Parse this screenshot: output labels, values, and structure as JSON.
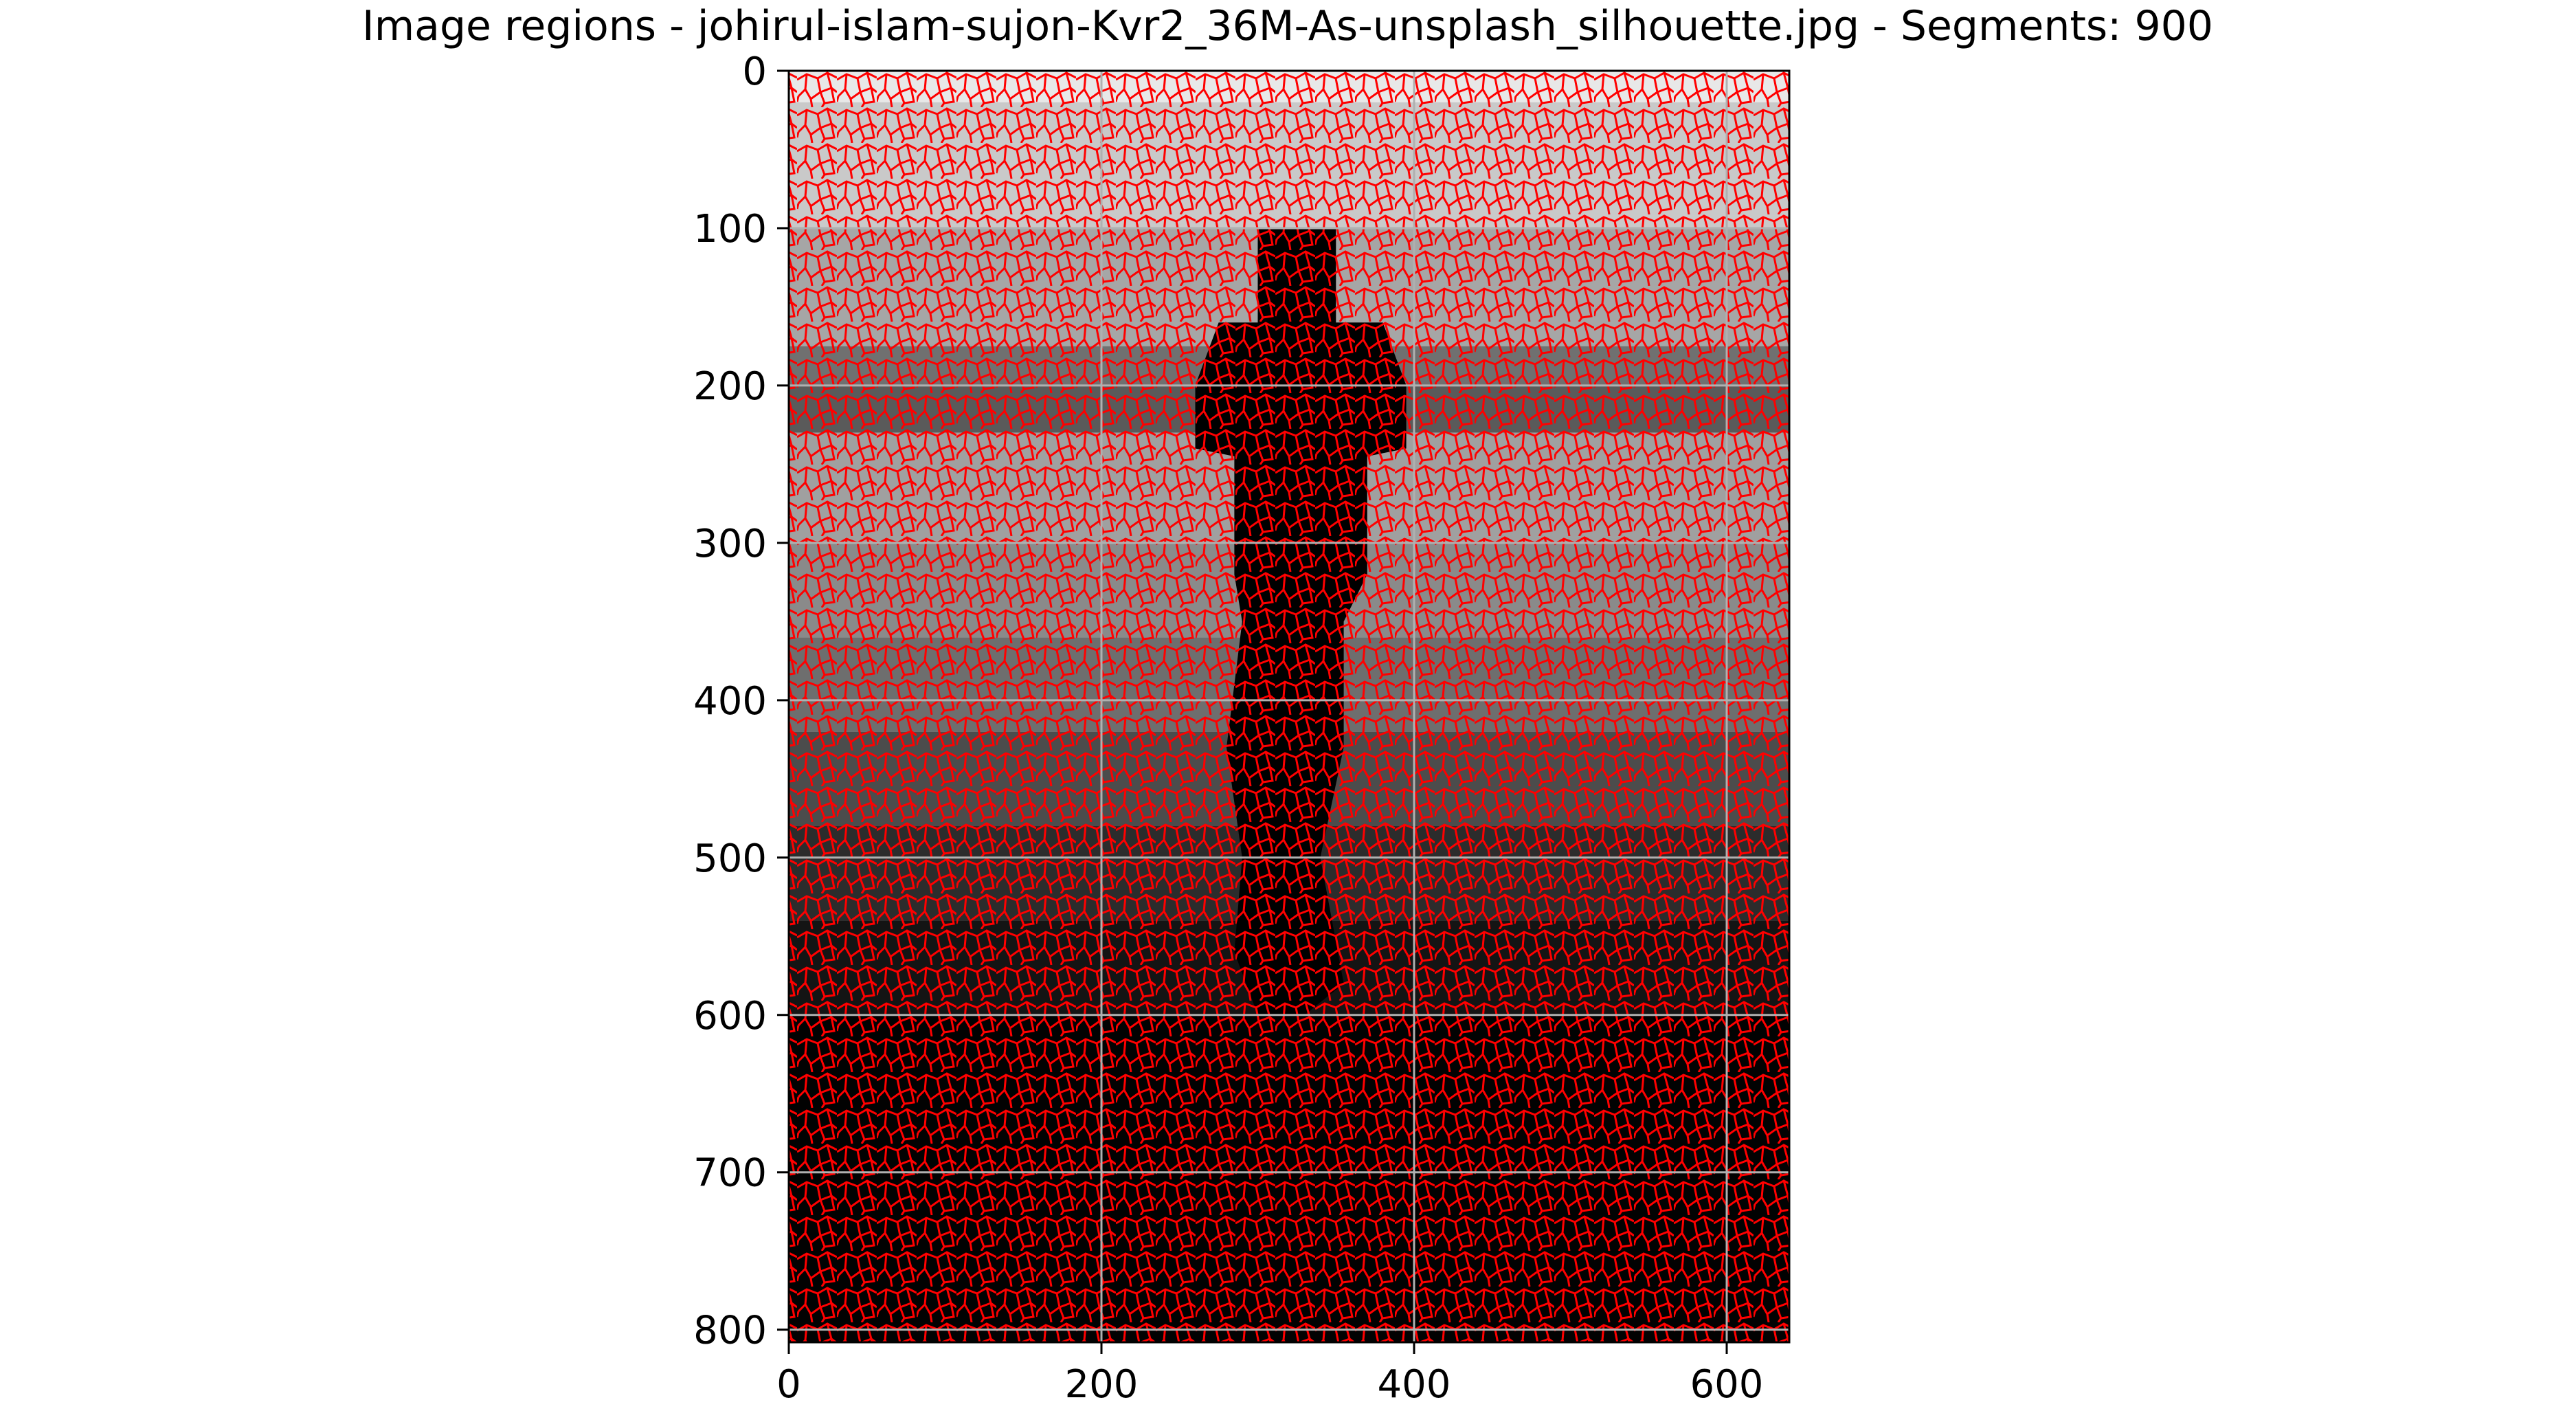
{
  "chart_data": {
    "type": "image",
    "title": "Image regions - johirul-islam-sujon-Kvr2_36M-As-unsplash_silhouette.jpg - Segments: 900",
    "xlabel": "",
    "ylabel": "",
    "xlim": [
      0,
      640
    ],
    "ylim": [
      808,
      0
    ],
    "x_ticks": [
      0,
      200,
      400,
      600
    ],
    "y_ticks": [
      0,
      100,
      200,
      300,
      400,
      500,
      600,
      700,
      800
    ],
    "x_tick_labels": [
      "0",
      "200",
      "400",
      "600"
    ],
    "y_tick_labels": [
      "0",
      "100",
      "200",
      "300",
      "400",
      "500",
      "600",
      "700",
      "800"
    ],
    "grid": true,
    "image": {
      "filename": "johirul-islam-sujon-Kvr2_36M-As-unsplash_silhouette.jpg",
      "segments": 900,
      "boundary_color": "#ff0000",
      "tone_bands": [
        {
          "y_start": 0,
          "y_end": 20,
          "gray": "#e8e8e8"
        },
        {
          "y_start": 20,
          "y_end": 100,
          "gray": "#c9c9c9"
        },
        {
          "y_start": 100,
          "y_end": 175,
          "gray": "#a6a6a6"
        },
        {
          "y_start": 175,
          "y_end": 200,
          "gray": "#707070"
        },
        {
          "y_start": 200,
          "y_end": 230,
          "gray": "#5a5a5a"
        },
        {
          "y_start": 230,
          "y_end": 300,
          "gray": "#a0a0a0"
        },
        {
          "y_start": 300,
          "y_end": 360,
          "gray": "#8a8a8a"
        },
        {
          "y_start": 360,
          "y_end": 420,
          "gray": "#6e6e6e"
        },
        {
          "y_start": 420,
          "y_end": 480,
          "gray": "#4c4c4c"
        },
        {
          "y_start": 480,
          "y_end": 540,
          "gray": "#2c2c2c"
        },
        {
          "y_start": 540,
          "y_end": 600,
          "gray": "#141414"
        },
        {
          "y_start": 600,
          "y_end": 808,
          "gray": "#020202"
        }
      ],
      "silhouette": {
        "shape": "standing-person",
        "color": "#000000",
        "head": [
          [
            300,
            100
          ],
          [
            350,
            100
          ],
          [
            350,
            170
          ],
          [
            300,
            170
          ]
        ],
        "body": [
          [
            275,
            160
          ],
          [
            380,
            160
          ],
          [
            395,
            200
          ],
          [
            395,
            240
          ],
          [
            370,
            245
          ],
          [
            370,
            320
          ],
          [
            355,
            350
          ],
          [
            355,
            430
          ],
          [
            340,
            500
          ],
          [
            355,
            580
          ],
          [
            330,
            600
          ],
          [
            300,
            600
          ],
          [
            285,
            560
          ],
          [
            290,
            500
          ],
          [
            280,
            430
          ],
          [
            290,
            350
          ],
          [
            285,
            320
          ],
          [
            285,
            245
          ],
          [
            260,
            240
          ],
          [
            260,
            200
          ]
        ]
      }
    }
  }
}
